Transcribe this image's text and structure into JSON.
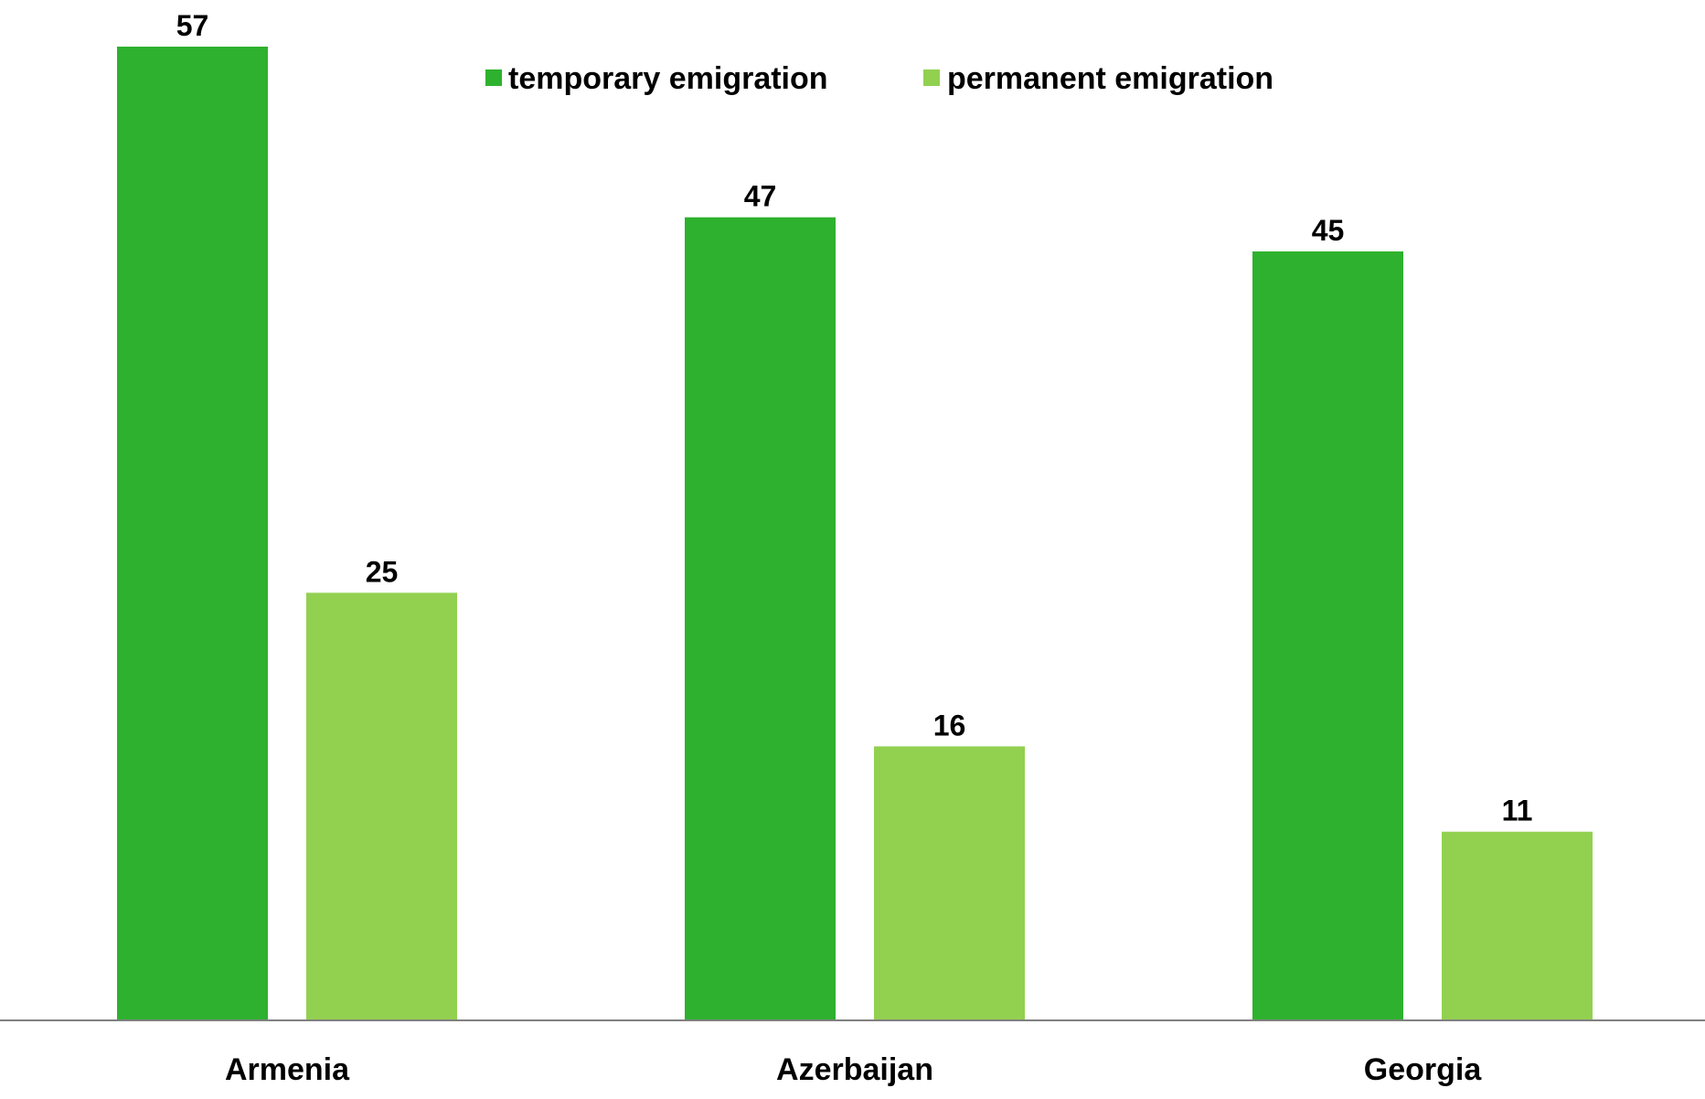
{
  "chart_data": {
    "type": "bar",
    "title": "",
    "xlabel": "",
    "ylabel": "",
    "categories": [
      "Armenia",
      "Azerbaijan",
      "Georgia"
    ],
    "series": [
      {
        "name": "temporary emigration",
        "values": [
          57,
          47,
          45
        ],
        "color": "#2eb12e"
      },
      {
        "name": "permanent emigration",
        "values": [
          25,
          16,
          11
        ],
        "color": "#92d050"
      }
    ],
    "ylim": [
      0,
      60
    ],
    "grid": false,
    "legend_position": "top-center",
    "axis_color": "#808080"
  }
}
